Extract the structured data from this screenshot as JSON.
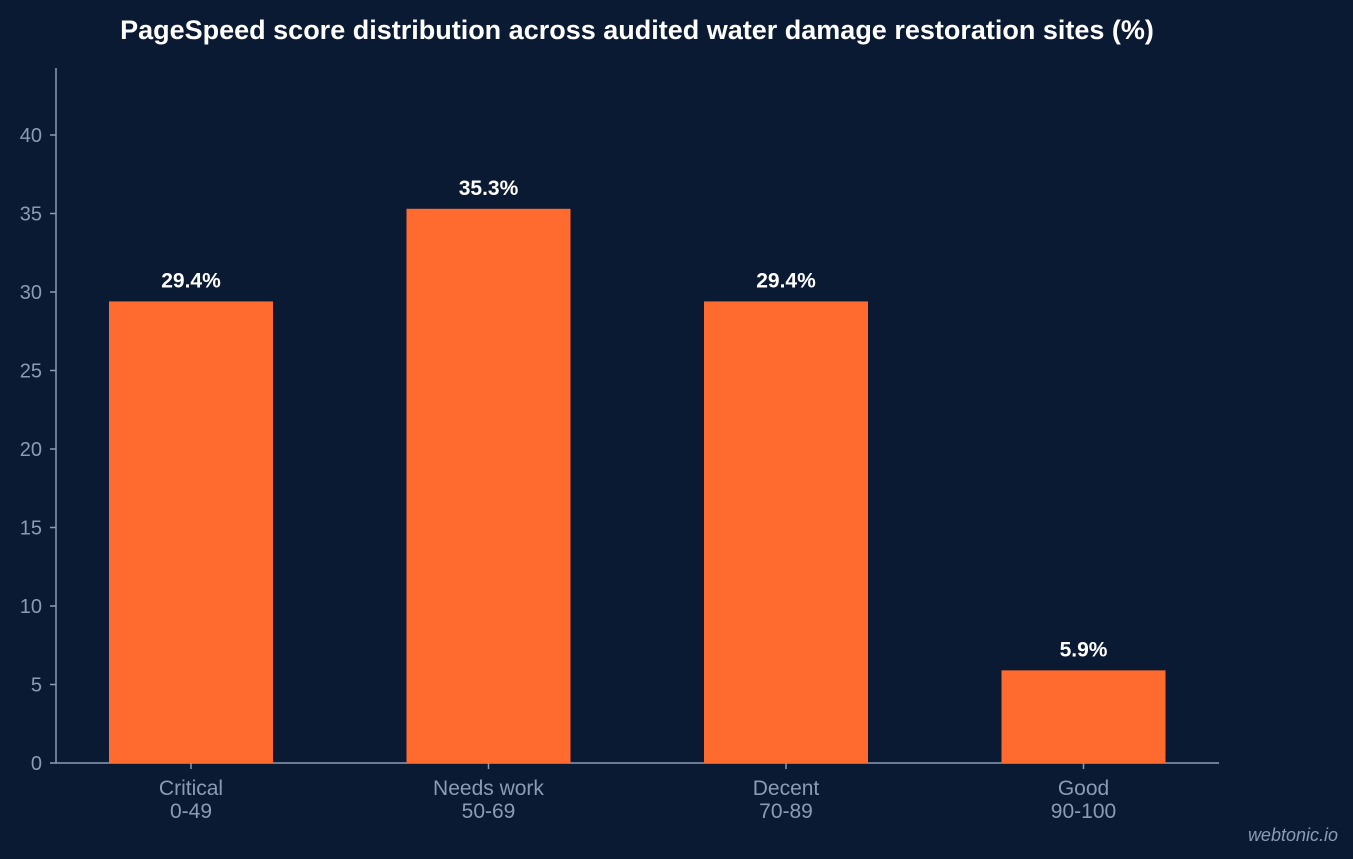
{
  "chart_data": {
    "type": "bar",
    "title": "PageSpeed score distribution across audited water damage restoration sites (%)",
    "categories": [
      [
        "Critical",
        "0-49"
      ],
      [
        "Needs work",
        "50-69"
      ],
      [
        "Decent",
        "70-89"
      ],
      [
        "Good",
        "90-100"
      ]
    ],
    "values": [
      29.4,
      35.3,
      29.4,
      5.9
    ],
    "data_labels": [
      "29.4%",
      "35.3%",
      "29.4%",
      "5.9%"
    ],
    "xlabel": "",
    "ylabel": "",
    "ylim": [
      0,
      44
    ],
    "yticks": [
      0,
      5,
      10,
      15,
      20,
      25,
      30,
      35,
      40
    ],
    "grid": false,
    "legend": "none",
    "colors": {
      "background": "#0b1a33",
      "bar": "#ff6b2e",
      "axis": "#8c9bb5",
      "tick_text": "#8c9bb5",
      "title_text": "#ffffff",
      "label_text": "#ffffff"
    }
  },
  "watermark": "webtonic.io"
}
